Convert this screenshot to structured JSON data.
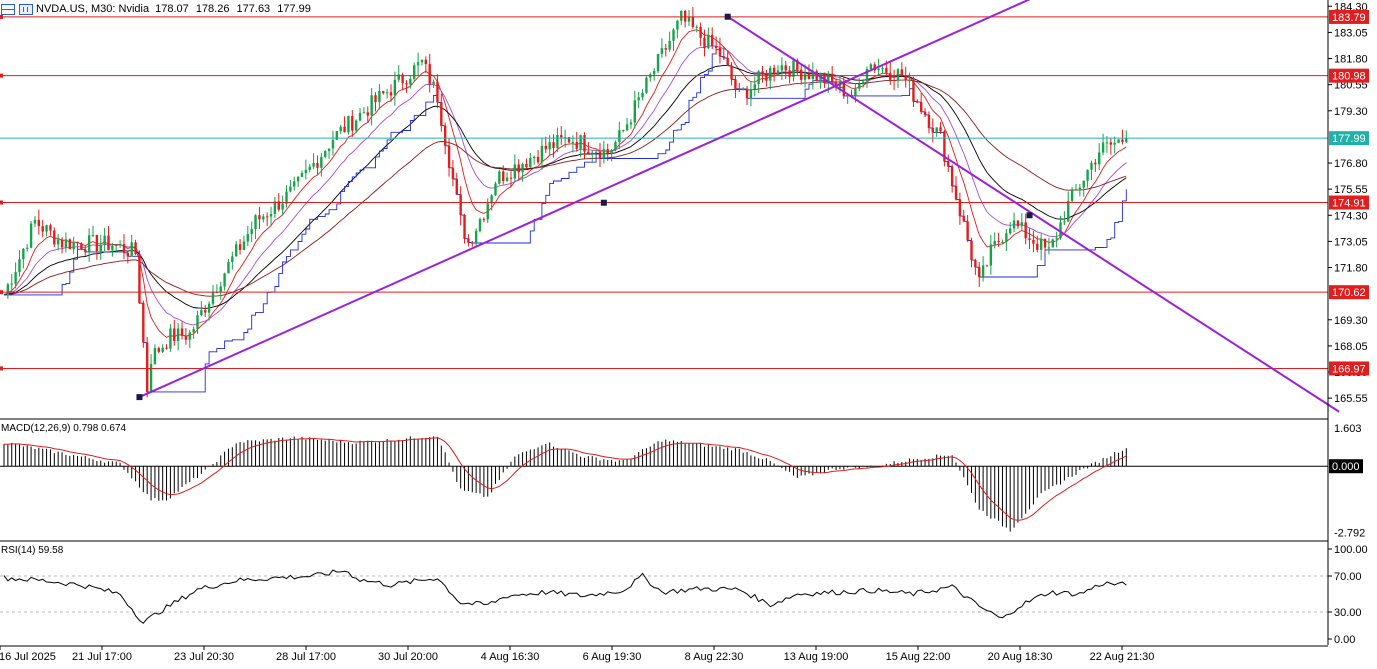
{
  "header": {
    "symbol": "NVDA.US, M30:  Nvidia",
    "open": "178.07",
    "high": "178.26",
    "low": "177.63",
    "close": "177.99"
  },
  "colors": {
    "bull": "#16a34a",
    "bear": "#e11d1d",
    "trendline": "#9b20d9",
    "hline": "#e11d1d",
    "price_line": "#20b2aa",
    "ma_black": "#000000",
    "ma_darkred": "#8b1a1a",
    "ma_red": "#e11d1d",
    "ma_violet": "#a64dd6",
    "ma_blue": "#1d2ad9",
    "macd_hist": "#000000",
    "macd_signal": "#e11d1d",
    "rsi": "#000000",
    "label_red_bg": "#e11d1d",
    "label_teal_bg": "#20b2aa"
  },
  "chart_data": [
    {
      "type": "candlestick",
      "price_axis_ticks": [
        "184.30",
        "183.05",
        "181.80",
        "180.55",
        "179.30",
        "176.80",
        "175.55",
        "174.30",
        "173.05",
        "171.80",
        "169.30",
        "168.05",
        "166.80",
        "165.55"
      ],
      "ylim": [
        164.6,
        184.6
      ],
      "time_labels": [
        "16 Jul 2025",
        "21 Jul 17:00",
        "23 Jul 20:30",
        "28 Jul 17:00",
        "30 Jul 20:00",
        "4 Aug 16:30",
        "6 Aug 19:30",
        "8 Aug 22:30",
        "13 Aug 19:00",
        "15 Aug 22:00",
        "20 Aug 18:30",
        "22 Aug 21:30"
      ],
      "current_price": "177.99",
      "horizontal_levels": [
        "183.79",
        "180.98",
        "174.91",
        "170.62",
        "166.97"
      ],
      "candle_count": 290,
      "price_path_bars": [
        0,
        8,
        15,
        28,
        34,
        37,
        38,
        43,
        48,
        55,
        65,
        75,
        85,
        95,
        108,
        112,
        118,
        120,
        124,
        127,
        130,
        140,
        146,
        156,
        159,
        169,
        175,
        185,
        190,
        200,
        210,
        220,
        223,
        232,
        242,
        252,
        255,
        260,
        270,
        275,
        283,
        290
      ],
      "price_path_values": [
        170.5,
        174.0,
        173.0,
        172.9,
        172.5,
        166.0,
        167.5,
        168.5,
        168.6,
        171.0,
        174.0,
        175.5,
        178.0,
        179.6,
        181.6,
        180.0,
        174.0,
        173.0,
        174.5,
        176.0,
        176.4,
        177.5,
        178.0,
        177.3,
        178.0,
        181.6,
        183.7,
        182.0,
        180.0,
        181.5,
        181.0,
        180.0,
        181.6,
        181.0,
        178.0,
        171.0,
        172.5,
        174.0,
        172.5,
        174.8,
        177.4,
        178.0
      ],
      "trendlines": [
        {
          "from_bar": 35,
          "from_value": 165.6,
          "to_bar": 290,
          "to_value": 186.7
        },
        {
          "from_bar": 187,
          "from_value": 183.8,
          "to_bar": 345,
          "to_value": 164.9
        }
      ]
    },
    {
      "type": "macd",
      "label": "MACD(12,26,9) 0.798 0.674",
      "axis_ticks": [
        "1.603",
        "0.000",
        "-2.792"
      ],
      "ylim": [
        -3.1,
        1.9
      ],
      "hist_path_bars": [
        0,
        30,
        38,
        42,
        52,
        60,
        75,
        90,
        100,
        112,
        118,
        125,
        132,
        140,
        150,
        160,
        170,
        180,
        190,
        198,
        205,
        215,
        225,
        235,
        245,
        252,
        260,
        268,
        278,
        290
      ],
      "hist_path_values": [
        1.0,
        0.1,
        -1.4,
        -1.4,
        -0.2,
        1.0,
        1.2,
        1.0,
        1.1,
        1.3,
        -1.0,
        -1.3,
        0.4,
        1.0,
        0.4,
        0.2,
        1.1,
        0.9,
        0.7,
        0.2,
        -0.5,
        -0.1,
        0.0,
        0.3,
        0.5,
        -1.8,
        -2.7,
        -1.2,
        -0.2,
        0.8
      ]
    },
    {
      "type": "rsi",
      "label": "RSI(14) 59.58",
      "axis_ticks": [
        "100.00",
        "70.00",
        "30.00",
        "0.00"
      ],
      "ylim": [
        0,
        100
      ],
      "levels": [
        70,
        30
      ],
      "rsi_path_bars": [
        0,
        10,
        20,
        30,
        36,
        40,
        50,
        60,
        70,
        80,
        88,
        92,
        100,
        112,
        118,
        125,
        130,
        140,
        150,
        160,
        165,
        170,
        180,
        190,
        198,
        205,
        215,
        225,
        235,
        245,
        252,
        258,
        262,
        270,
        278,
        284,
        290
      ],
      "rsi_path_values": [
        68,
        65,
        60,
        50,
        18,
        30,
        55,
        65,
        68,
        70,
        76,
        66,
        60,
        68,
        40,
        38,
        48,
        52,
        48,
        54,
        70,
        52,
        56,
        55,
        38,
        50,
        52,
        54,
        50,
        58,
        36,
        22,
        36,
        52,
        50,
        62,
        60
      ]
    }
  ]
}
